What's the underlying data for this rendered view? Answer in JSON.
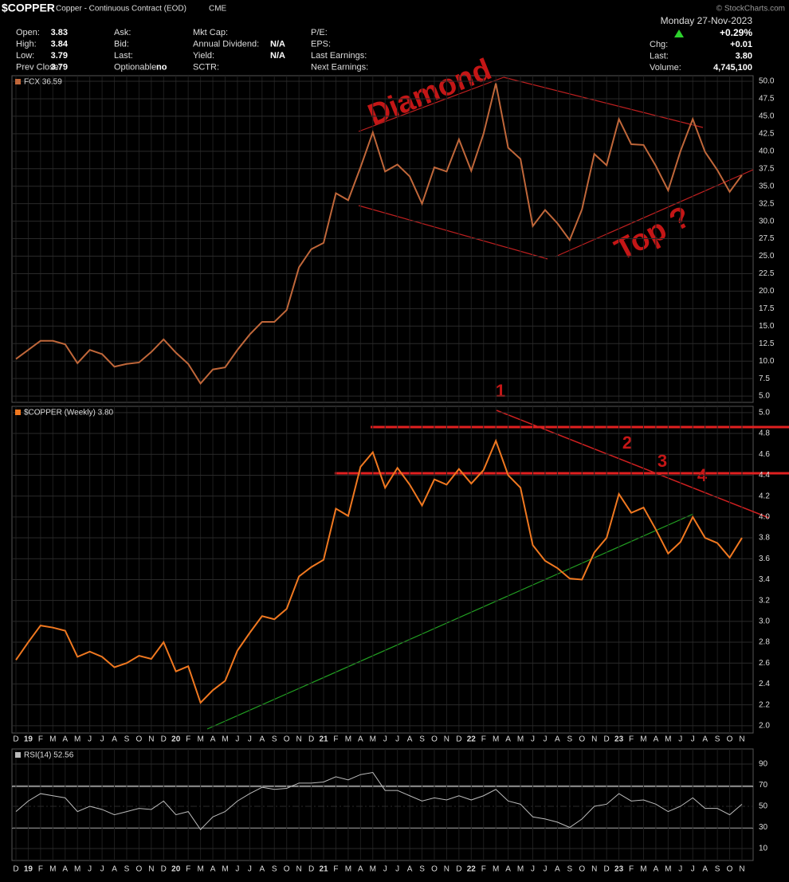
{
  "header": {
    "symbol": "$COPPER",
    "name": "Copper - Continuous Contract (EOD)",
    "exchange": "CME",
    "date": "Monday  27-Nov-2023",
    "change_pct": "+0.29%",
    "watermark": "© StockCharts.com"
  },
  "quote": [
    [
      [
        "Open:",
        "3.83"
      ],
      [
        "High:",
        "3.84"
      ],
      [
        "Low:",
        "3.79"
      ],
      [
        "Prev Close:",
        "3.79"
      ]
    ],
    [
      [
        "Ask:",
        ""
      ],
      [
        "Bid:",
        ""
      ],
      [
        "Last:",
        ""
      ],
      [
        "Optionable:",
        "no"
      ]
    ],
    [
      [
        "Mkt Cap:",
        ""
      ],
      [
        "Annual Dividend:",
        "N/A"
      ],
      [
        "Yield:",
        "N/A"
      ],
      [
        "SCTR:",
        ""
      ]
    ],
    [
      [
        "P/E:",
        ""
      ],
      [
        "EPS:",
        ""
      ],
      [
        "Last Earnings:",
        ""
      ],
      [
        "Next Earnings:",
        ""
      ]
    ],
    [
      [
        "Chg:",
        "+0.01"
      ],
      [
        "Last:",
        "3.80"
      ],
      [
        "Volume:",
        "4,745,100"
      ]
    ]
  ],
  "annotations": {
    "diamond": "Diamond",
    "top": "Top ?",
    "n1": "1",
    "n2": "2",
    "n3": "3",
    "n4": "4"
  },
  "chart_data": [
    {
      "type": "line",
      "categories": [
        "D",
        "19",
        "F",
        "M",
        "A",
        "M",
        "J",
        "J",
        "A",
        "S",
        "O",
        "N",
        "D",
        "20",
        "F",
        "M",
        "A",
        "M",
        "J",
        "J",
        "A",
        "S",
        "O",
        "N",
        "D",
        "21",
        "F",
        "M",
        "A",
        "M",
        "J",
        "J",
        "A",
        "S",
        "O",
        "N",
        "D",
        "22",
        "F",
        "M",
        "A",
        "M",
        "J",
        "J",
        "A",
        "S",
        "O",
        "N",
        "D",
        "23",
        "F",
        "M",
        "A",
        "M",
        "J",
        "J",
        "A",
        "S",
        "O",
        "N"
      ],
      "series": [
        {
          "name": "FCX 36.59",
          "color": "#c0673a",
          "values": [
            10.3,
            11.6,
            12.9,
            12.9,
            12.4,
            9.7,
            11.6,
            11.0,
            9.2,
            9.6,
            9.8,
            11.3,
            13.1,
            11.2,
            9.6,
            6.8,
            8.8,
            9.1,
            11.6,
            13.8,
            15.6,
            15.6,
            17.3,
            23.4,
            26.0,
            26.9,
            34.0,
            33.0,
            37.7,
            42.7,
            37.1,
            38.1,
            36.4,
            32.5,
            37.7,
            37.1,
            41.7,
            37.2,
            42.5,
            49.7,
            40.5,
            38.9,
            29.3,
            31.6,
            29.7,
            27.3,
            31.7,
            39.6,
            38.0,
            44.6,
            41.0,
            40.9,
            37.9,
            34.4,
            40.0,
            44.6,
            39.9,
            37.3,
            34.2,
            36.6
          ]
        }
      ],
      "ylim": [
        4.1,
        50.8
      ],
      "yticks": [
        {
          "value": 5,
          "label": "5.0"
        },
        7.5,
        {
          "value": 10,
          "label": "10.0"
        },
        12.5,
        {
          "value": 15,
          "label": "15.0"
        },
        17.5,
        {
          "value": 20,
          "label": "20.0"
        },
        22.5,
        {
          "value": 25,
          "label": "25.0"
        },
        27.5,
        {
          "value": 30,
          "label": "30.0"
        },
        32.5,
        {
          "value": 35,
          "label": "35.0"
        },
        37.5,
        {
          "value": 40,
          "label": "40.0"
        },
        42.5,
        {
          "value": 45,
          "label": "45.0"
        },
        47.5,
        {
          "value": 50,
          "label": "50.0"
        }
      ],
      "grid": true
    },
    {
      "type": "line",
      "series": [
        {
          "name": "$COPPER (Weekly) 3.80",
          "color": "#f07820",
          "values": [
            2.63,
            2.8,
            2.96,
            2.94,
            2.91,
            2.66,
            2.71,
            2.66,
            2.56,
            2.6,
            2.67,
            2.64,
            2.8,
            2.52,
            2.57,
            2.22,
            2.34,
            2.43,
            2.72,
            2.89,
            3.05,
            3.02,
            3.12,
            3.43,
            3.52,
            3.59,
            4.08,
            4.01,
            4.48,
            4.62,
            4.28,
            4.47,
            4.31,
            4.11,
            4.36,
            4.31,
            4.46,
            4.32,
            4.45,
            4.73,
            4.4,
            4.28,
            3.73,
            3.58,
            3.51,
            3.41,
            3.4,
            3.66,
            3.8,
            4.22,
            4.04,
            4.09,
            3.88,
            3.65,
            3.76,
            4.0,
            3.8,
            3.75,
            3.61,
            3.8
          ]
        }
      ],
      "ylim": [
        1.93,
        5.06
      ],
      "yticks": [
        {
          "value": 2,
          "label": "2.0"
        },
        2.2,
        2.4,
        2.6,
        2.8,
        {
          "value": 3,
          "label": "3.0"
        },
        3.2,
        3.4,
        3.6,
        3.8,
        {
          "value": 4,
          "label": "4.0"
        },
        4.2,
        4.4,
        4.6,
        4.8,
        {
          "value": 5,
          "label": "5.0"
        }
      ],
      "grid": true
    },
    {
      "type": "line",
      "series": [
        {
          "name": "RSI(14) 52.56",
          "color": "#bbbbbb",
          "values": [
            45,
            55,
            62,
            60,
            58,
            45,
            50,
            47,
            42,
            45,
            48,
            47,
            55,
            42,
            45,
            28,
            40,
            45,
            55,
            62,
            68,
            66,
            67,
            72,
            72,
            73,
            78,
            75,
            80,
            82,
            65,
            65,
            60,
            55,
            58,
            56,
            60,
            56,
            60,
            66,
            55,
            52,
            40,
            38,
            35,
            30,
            38,
            50,
            52,
            62,
            55,
            56,
            52,
            45,
            50,
            58,
            48,
            48,
            42,
            52
          ]
        }
      ],
      "ylim": [
        -1.3,
        104.3
      ],
      "yticks": [
        10,
        30,
        50,
        70,
        90
      ],
      "grid": true
    }
  ]
}
